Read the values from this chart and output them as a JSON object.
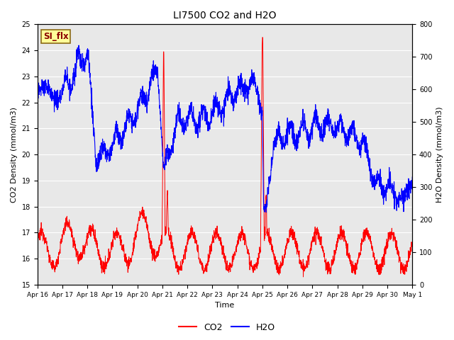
{
  "title": "LI7500 CO2 and H2O",
  "xlabel": "Time",
  "ylabel_left": "CO2 Density (mmol/m3)",
  "ylabel_right": "H2O Density (mmol/m3)",
  "ylim_left": [
    15.0,
    25.0
  ],
  "ylim_right": [
    0,
    800
  ],
  "yticks_left": [
    15.0,
    16.0,
    17.0,
    18.0,
    19.0,
    20.0,
    21.0,
    22.0,
    23.0,
    24.0,
    25.0
  ],
  "yticks_right": [
    0,
    100,
    200,
    300,
    400,
    500,
    600,
    700,
    800
  ],
  "xtick_labels": [
    "Apr 16",
    "Apr 17",
    "Apr 18",
    "Apr 19",
    "Apr 20",
    "Apr 21",
    "Apr 22",
    "Apr 23",
    "Apr 24",
    "Apr 25",
    "Apr 26",
    "Apr 27",
    "Apr 28",
    "Apr 29",
    "Apr 30",
    "May 1"
  ],
  "co2_color": "#FF0000",
  "h2o_color": "#0000FF",
  "bg_color": "#E8E8E8",
  "label_box_text": "SI_flx",
  "label_box_bg": "#FFFF99",
  "label_box_edge": "#8B6914"
}
